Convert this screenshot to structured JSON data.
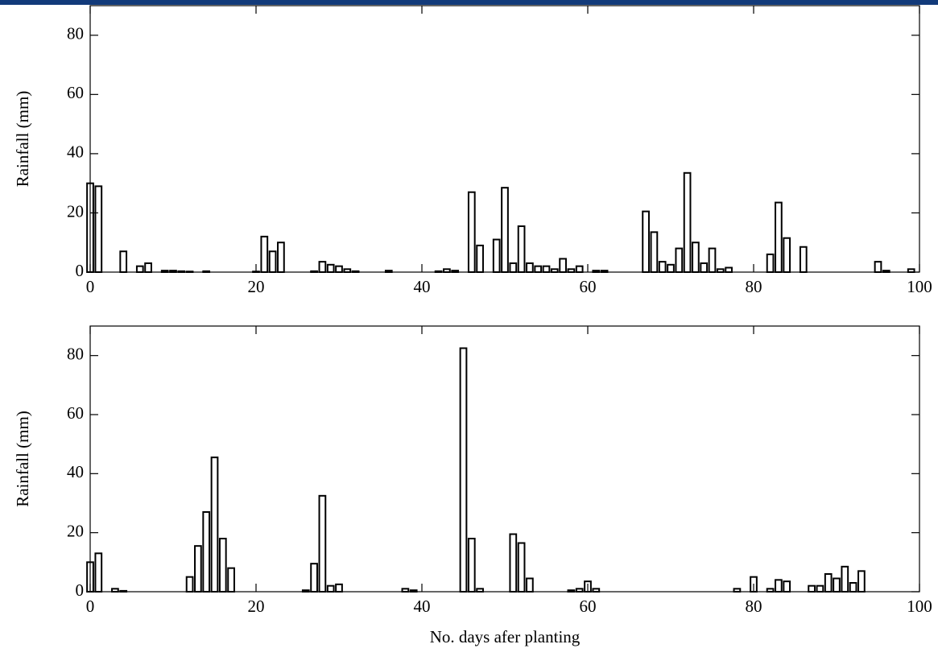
{
  "chart_data": [
    {
      "type": "bar",
      "ylabel": "Rainfall (mm)",
      "color": "#ffffff",
      "x": [
        0,
        1,
        4,
        6,
        7,
        9,
        10,
        11,
        12,
        14,
        20,
        21,
        22,
        23,
        27,
        28,
        29,
        30,
        31,
        32,
        36,
        42,
        43,
        44,
        46,
        47,
        49,
        50,
        51,
        52,
        53,
        54,
        55,
        56,
        57,
        58,
        59,
        61,
        62,
        67,
        68,
        69,
        70,
        71,
        72,
        73,
        74,
        75,
        76,
        77,
        82,
        83,
        84,
        86,
        95,
        96,
        99
      ],
      "values": [
        30,
        29,
        7,
        2,
        3,
        0.5,
        0.5,
        0.3,
        0.2,
        0.3,
        0.2,
        12,
        7,
        10,
        0.3,
        3.5,
        2.5,
        2,
        1,
        0.3,
        0.5,
        0.3,
        1,
        0.5,
        27,
        9,
        11,
        28.5,
        3,
        15.5,
        3,
        2,
        2,
        1,
        4.5,
        1,
        2,
        0.5,
        0.5,
        20.5,
        13.5,
        3.5,
        2.5,
        8,
        33.5,
        10,
        3,
        8,
        1,
        1.5,
        6,
        23.5,
        11.5,
        8.5,
        3.5,
        0.5,
        1
      ],
      "xlim": [
        0,
        100
      ],
      "xticks": [
        0,
        20,
        40,
        60,
        80,
        100
      ],
      "ylim": [
        0,
        90
      ],
      "yticks": [
        0,
        20,
        40,
        60,
        80
      ]
    },
    {
      "type": "bar",
      "ylabel": "Rainfall (mm)",
      "xlabel": "No. days afer planting",
      "color": "#ffffff",
      "x": [
        0,
        1,
        3,
        4,
        12,
        13,
        14,
        15,
        16,
        17,
        26,
        27,
        28,
        29,
        30,
        38,
        39,
        45,
        46,
        47,
        51,
        52,
        53,
        58,
        59,
        60,
        61,
        78,
        80,
        82,
        83,
        84,
        87,
        88,
        89,
        90,
        91,
        92,
        93
      ],
      "values": [
        10,
        13,
        1,
        0.3,
        5,
        15.5,
        27,
        45.5,
        18,
        8,
        0.5,
        9.5,
        32.5,
        2,
        2.5,
        1,
        0.5,
        82.5,
        18,
        1,
        19.5,
        16.5,
        4.5,
        0.5,
        1,
        3.5,
        1,
        1,
        5,
        1,
        4,
        3.5,
        2,
        2,
        6,
        4.5,
        8.5,
        3,
        7
      ],
      "xlim": [
        0,
        100
      ],
      "xticks": [
        0,
        20,
        40,
        60,
        80,
        100
      ],
      "ylim": [
        0,
        90
      ],
      "yticks": [
        0,
        20,
        40,
        60,
        80
      ]
    }
  ]
}
